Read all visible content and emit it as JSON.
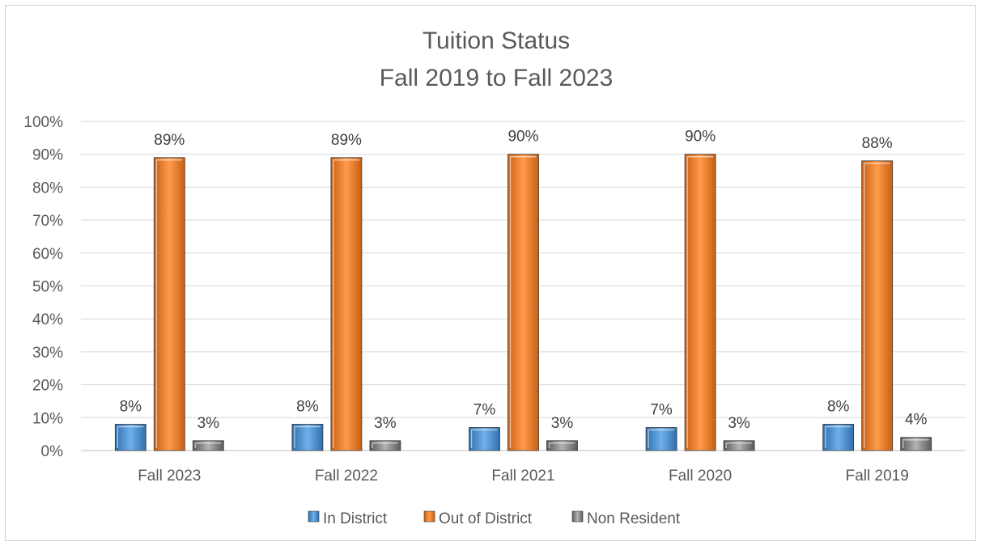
{
  "chart_data": {
    "type": "bar",
    "title": "Tuition Status",
    "subtitle": "Fall 2019 to Fall 2023",
    "categories": [
      "Fall 2023",
      "Fall 2022",
      "Fall 2021",
      "Fall 2020",
      "Fall 2019"
    ],
    "series": [
      {
        "name": "In District",
        "values": [
          8,
          8,
          7,
          7,
          8
        ],
        "labels": [
          "8%",
          "8%",
          "7%",
          "7%",
          "8%"
        ],
        "color": "#4a90d0"
      },
      {
        "name": "Out of District",
        "values": [
          89,
          89,
          90,
          90,
          88
        ],
        "labels": [
          "89%",
          "89%",
          "90%",
          "90%",
          "88%"
        ],
        "color": "#f08230"
      },
      {
        "name": "Non Resident",
        "values": [
          3,
          3,
          3,
          3,
          4
        ],
        "labels": [
          "3%",
          "3%",
          "3%",
          "3%",
          "4%"
        ],
        "color": "#8c8c8c"
      }
    ],
    "ylim": [
      0,
      100
    ],
    "yticks": [
      "0%",
      "10%",
      "20%",
      "30%",
      "40%",
      "50%",
      "60%",
      "70%",
      "80%",
      "90%",
      "100%"
    ],
    "grid": true,
    "legend": "bottom"
  }
}
